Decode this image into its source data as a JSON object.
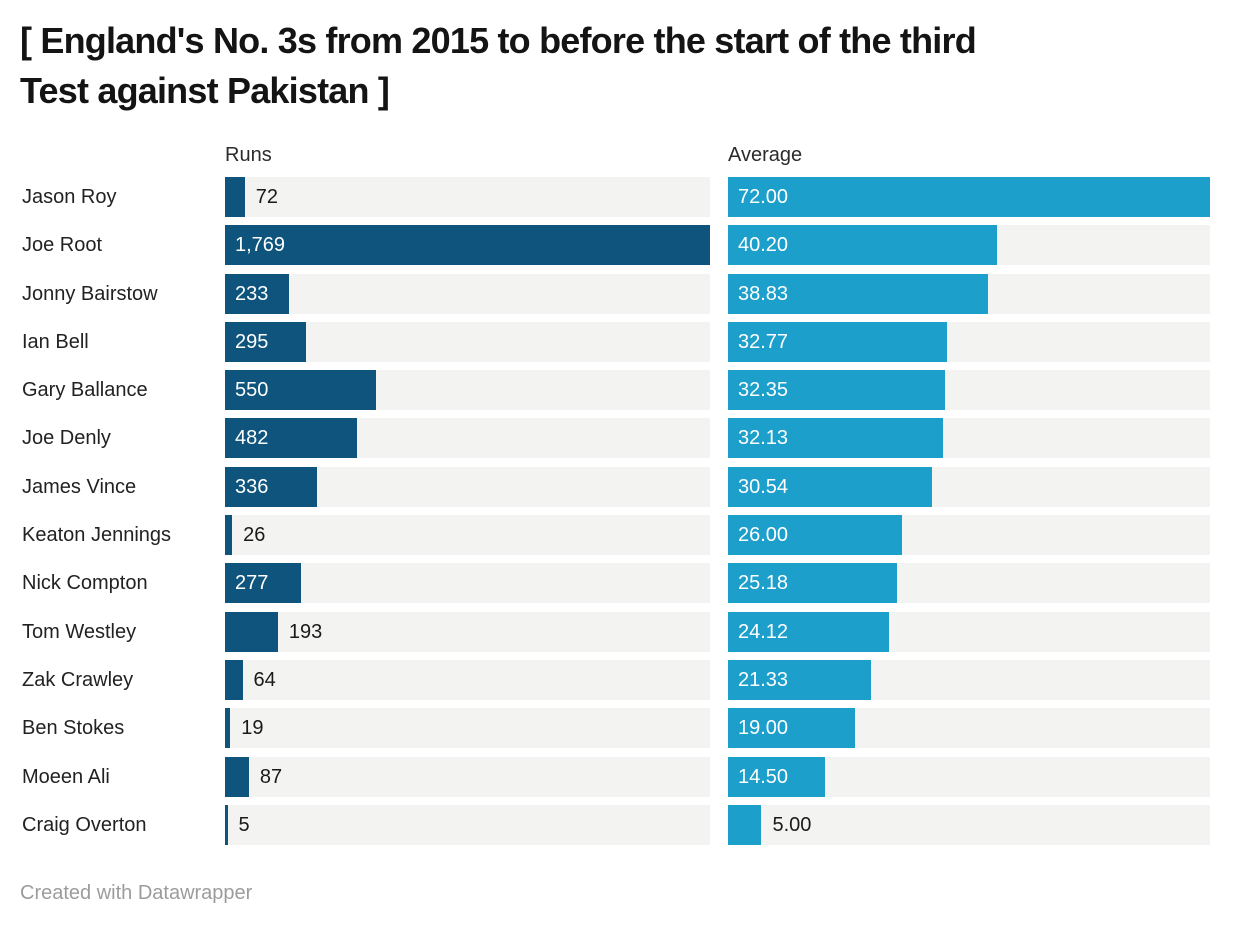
{
  "title": {
    "line1": "[ England's No. 3s from 2015 to before the start of the third",
    "line2": "Test against Pakistan ]",
    "full": "[ England's No. 3s from 2015 to before the start of the third Test against Pakistan ]"
  },
  "columns": {
    "runs_header": "Runs",
    "average_header": "Average"
  },
  "colors": {
    "runs_bar": "#0e547c",
    "average_bar": "#1d9fcc",
    "track": "#f3f3f1",
    "label_inside": "#ffffff",
    "label_outside": "#1a1a1a"
  },
  "footer": {
    "credit": "Created with Datawrapper"
  },
  "chart_data": {
    "type": "bar",
    "orientation": "horizontal",
    "title": "[ England's No. 3s from 2015 to before the start of the third Test against Pakistan ]",
    "grid": false,
    "legend_position": "column-headers",
    "categories": [
      "Jason Roy",
      "Joe Root",
      "Jonny Bairstow",
      "Ian Bell",
      "Gary Ballance",
      "Joe Denly",
      "James Vince",
      "Keaton Jennings",
      "Nick Compton",
      "Tom Westley",
      "Zak Crawley",
      "Ben Stokes",
      "Moeen Ali",
      "Craig Overton"
    ],
    "series": [
      {
        "name": "Runs",
        "values": [
          72,
          1769,
          233,
          295,
          550,
          482,
          336,
          26,
          277,
          193,
          64,
          19,
          87,
          5
        ],
        "labels": [
          "72",
          "1,769",
          "233",
          "295",
          "550",
          "482",
          "336",
          "26",
          "277",
          "193",
          "64",
          "19",
          "87",
          "5"
        ],
        "xlim": [
          0,
          1769
        ]
      },
      {
        "name": "Average",
        "values": [
          72.0,
          40.2,
          38.83,
          32.77,
          32.35,
          32.13,
          30.54,
          26.0,
          25.18,
          24.12,
          21.33,
          19.0,
          14.5,
          5.0
        ],
        "labels": [
          "72.00",
          "40.20",
          "38.83",
          "32.77",
          "32.35",
          "32.13",
          "30.54",
          "26.00",
          "25.18",
          "24.12",
          "21.33",
          "19.00",
          "14.50",
          "5.00"
        ],
        "xlim": [
          0,
          72
        ]
      }
    ]
  }
}
